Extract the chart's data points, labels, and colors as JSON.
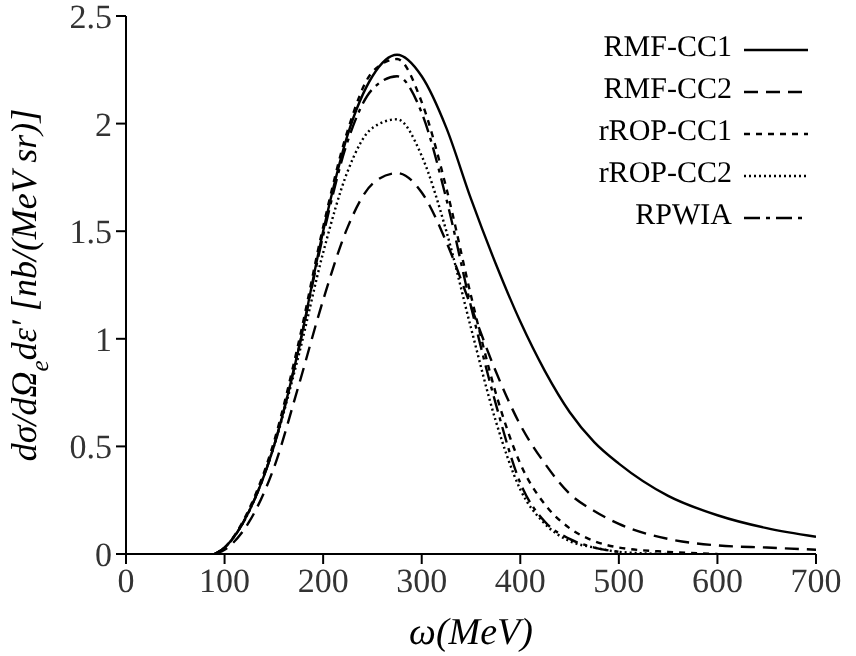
{
  "chart_data": {
    "type": "line",
    "xlabel": "ω(MeV)",
    "ylabel": "dσ/dΩ$_{e}$dε′ [nb/(MeV sr)]",
    "x": [
      90,
      100,
      125,
      150,
      175,
      200,
      225,
      250,
      275,
      300,
      325,
      350,
      375,
      400,
      425,
      450,
      475,
      500,
      550,
      600,
      650,
      700
    ],
    "xlim": [
      0,
      700
    ],
    "xticks": [
      0,
      100,
      200,
      300,
      400,
      500,
      600,
      700
    ],
    "ylim": [
      0,
      2.5
    ],
    "yticks": [
      0,
      0.5,
      1,
      1.5,
      2,
      2.5
    ],
    "legend": "top right",
    "grid": false,
    "marker": "none",
    "series": [
      {
        "name": "RMF-CC1",
        "color": "#000000",
        "line_style": "solid",
        "values": [
          0,
          0.03,
          0.2,
          0.5,
          0.95,
          1.5,
          1.95,
          2.22,
          2.32,
          2.22,
          1.98,
          1.65,
          1.35,
          1.08,
          0.85,
          0.66,
          0.52,
          0.42,
          0.27,
          0.18,
          0.12,
          0.08
        ]
      },
      {
        "name": "RMF-CC2",
        "color": "#000000",
        "line_style": "dashed",
        "values": [
          0,
          0.02,
          0.15,
          0.4,
          0.78,
          1.18,
          1.52,
          1.72,
          1.77,
          1.68,
          1.45,
          1.15,
          0.85,
          0.6,
          0.42,
          0.28,
          0.2,
          0.14,
          0.07,
          0.04,
          0.03,
          0.02
        ]
      },
      {
        "name": "rROP-CC1",
        "color": "#000000",
        "line_style": "dotted",
        "values": [
          0,
          0.03,
          0.21,
          0.52,
          0.98,
          1.52,
          1.97,
          2.24,
          2.3,
          2.1,
          1.7,
          1.2,
          0.75,
          0.42,
          0.23,
          0.12,
          0.06,
          0.03,
          0.01,
          0,
          null,
          null
        ]
      },
      {
        "name": "rROP-CC2",
        "color": "#000000",
        "line_style": "densely dotted",
        "values": [
          0,
          0.03,
          0.2,
          0.5,
          0.92,
          1.4,
          1.78,
          1.98,
          2.02,
          1.85,
          1.5,
          1.05,
          0.62,
          0.3,
          0.14,
          0.06,
          0.03,
          0.01,
          0,
          null,
          null,
          null
        ]
      },
      {
        "name": "RPWIA",
        "color": "#000000",
        "line_style": "dashdot",
        "values": [
          0,
          0.03,
          0.2,
          0.5,
          0.95,
          1.48,
          1.92,
          2.16,
          2.22,
          2.05,
          1.65,
          1.15,
          0.7,
          0.33,
          0.15,
          0.07,
          0.03,
          0.01,
          null,
          null,
          null,
          null
        ]
      }
    ]
  }
}
